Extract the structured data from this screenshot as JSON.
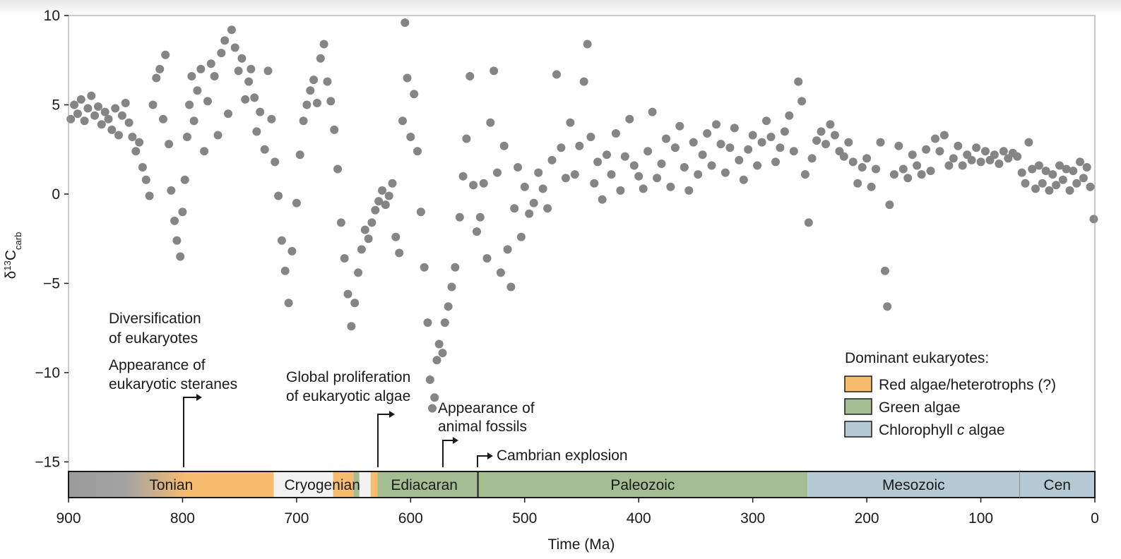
{
  "chart_data": {
    "type": "scatter",
    "title": "",
    "xlabel": "Time (Ma)",
    "ylabel_main": "δ",
    "ylabel_sup": "13",
    "ylabel_main2": "C",
    "ylabel_sub": "carb",
    "xlim": [
      900,
      0
    ],
    "ylim": [
      -17,
      10
    ],
    "x_ticks": [
      900,
      800,
      700,
      600,
      500,
      400,
      300,
      200,
      100,
      0
    ],
    "y_ticks": [
      10,
      5,
      0,
      -5,
      -10,
      -15
    ],
    "y_tick_labels": [
      "10",
      "5",
      "0",
      "−5",
      "−10",
      "−15"
    ],
    "grid": false,
    "marker_color": "#858585",
    "series": [
      {
        "points": [
          [
            898,
            4.2
          ],
          [
            895,
            5.0
          ],
          [
            892,
            4.5
          ],
          [
            889,
            5.3
          ],
          [
            886,
            4.1
          ],
          [
            883,
            4.8
          ],
          [
            880,
            5.5
          ],
          [
            877,
            4.4
          ],
          [
            874,
            4.9
          ],
          [
            871,
            3.9
          ],
          [
            868,
            4.6
          ],
          [
            865,
            4.2
          ],
          [
            862,
            3.6
          ],
          [
            859,
            4.8
          ],
          [
            856,
            3.3
          ],
          [
            853,
            4.4
          ],
          [
            850,
            5.1
          ],
          [
            847,
            4.0
          ],
          [
            844,
            3.2
          ],
          [
            841,
            2.4
          ],
          [
            838,
            2.9
          ],
          [
            835,
            1.5
          ],
          [
            832,
            0.8
          ],
          [
            829,
            -0.1
          ],
          [
            826,
            5.0
          ],
          [
            823,
            6.5
          ],
          [
            820,
            7.0
          ],
          [
            817,
            4.2
          ],
          [
            815,
            7.8
          ],
          [
            812,
            2.8
          ],
          [
            810,
            0.2
          ],
          [
            807,
            -1.5
          ],
          [
            805,
            -2.6
          ],
          [
            802,
            -3.5
          ],
          [
            800,
            -1.0
          ],
          [
            798,
            0.8
          ],
          [
            796,
            3.2
          ],
          [
            794,
            5.0
          ],
          [
            792,
            6.6
          ],
          [
            790,
            4.1
          ],
          [
            787,
            5.8
          ],
          [
            784,
            7.0
          ],
          [
            781,
            2.4
          ],
          [
            778,
            5.2
          ],
          [
            775,
            7.3
          ],
          [
            772,
            6.6
          ],
          [
            769,
            3.3
          ],
          [
            766,
            7.9
          ],
          [
            763,
            8.6
          ],
          [
            760,
            4.5
          ],
          [
            757,
            9.2
          ],
          [
            754,
            8.2
          ],
          [
            751,
            6.9
          ],
          [
            748,
            7.6
          ],
          [
            745,
            5.3
          ],
          [
            742,
            6.3
          ],
          [
            740,
            7.0
          ],
          [
            737,
            5.4
          ],
          [
            735,
            3.5
          ],
          [
            732,
            4.6
          ],
          [
            728,
            2.5
          ],
          [
            725,
            6.9
          ],
          [
            722,
            4.2
          ],
          [
            719,
            1.8
          ],
          [
            716,
            -0.1
          ],
          [
            713,
            -2.6
          ],
          [
            710,
            -4.3
          ],
          [
            707,
            -6.1
          ],
          [
            704,
            -3.2
          ],
          [
            700,
            -0.5
          ],
          [
            697,
            2.2
          ],
          [
            694,
            4.1
          ],
          [
            691,
            5.0
          ],
          [
            688,
            5.8
          ],
          [
            685,
            6.4
          ],
          [
            682,
            5.1
          ],
          [
            679,
            7.6
          ],
          [
            676,
            8.4
          ],
          [
            673,
            6.3
          ],
          [
            670,
            5.2
          ],
          [
            667,
            3.6
          ],
          [
            664,
            1.4
          ],
          [
            661,
            -1.6
          ],
          [
            658,
            -3.6
          ],
          [
            655,
            -5.6
          ],
          [
            652,
            -7.4
          ],
          [
            649,
            -6.1
          ],
          [
            646,
            -4.4
          ],
          [
            643,
            -3.1
          ],
          [
            640,
            -2.0
          ],
          [
            637,
            -2.5
          ],
          [
            634,
            -1.6
          ],
          [
            631,
            -0.9
          ],
          [
            628,
            -0.4
          ],
          [
            625,
            0.2
          ],
          [
            622,
            -0.6
          ],
          [
            619,
            -0.1
          ],
          [
            616,
            0.6
          ],
          [
            613,
            -2.4
          ],
          [
            610,
            -3.3
          ],
          [
            607,
            4.1
          ],
          [
            605,
            9.6
          ],
          [
            603,
            6.5
          ],
          [
            600,
            3.2
          ],
          [
            597,
            5.6
          ],
          [
            594,
            2.4
          ],
          [
            591,
            -1.0
          ],
          [
            588,
            -4.1
          ],
          [
            585,
            -7.2
          ],
          [
            583,
            -10.4
          ],
          [
            581,
            -12.0
          ],
          [
            579,
            -11.4
          ],
          [
            577,
            -9.3
          ],
          [
            575,
            -8.4
          ],
          [
            572,
            -8.9
          ],
          [
            570,
            -7.2
          ],
          [
            567,
            -6.3
          ],
          [
            564,
            -5.2
          ],
          [
            561,
            -4.1
          ],
          [
            557,
            -1.3
          ],
          [
            554,
            1.0
          ],
          [
            551,
            3.1
          ],
          [
            548,
            6.6
          ],
          [
            545,
            0.5
          ],
          [
            542,
            -2.1
          ],
          [
            539,
            -1.3
          ],
          [
            536,
            0.6
          ],
          [
            533,
            -3.6
          ],
          [
            530,
            4.0
          ],
          [
            527,
            6.9
          ],
          [
            524,
            1.2
          ],
          [
            521,
            -4.4
          ],
          [
            518,
            2.7
          ],
          [
            515,
            -3.1
          ],
          [
            512,
            -5.2
          ],
          [
            509,
            -0.8
          ],
          [
            506,
            1.5
          ],
          [
            503,
            -2.4
          ],
          [
            500,
            0.4
          ],
          [
            496,
            -1.1
          ],
          [
            492,
            -0.5
          ],
          [
            488,
            1.2
          ],
          [
            484,
            0.3
          ],
          [
            480,
            -0.8
          ],
          [
            476,
            1.9
          ],
          [
            472,
            6.7
          ],
          [
            468,
            2.6
          ],
          [
            464,
            0.9
          ],
          [
            460,
            4.0
          ],
          [
            456,
            1.1
          ],
          [
            452,
            2.7
          ],
          [
            448,
            6.3
          ],
          [
            445,
            8.4
          ],
          [
            442,
            3.2
          ],
          [
            439,
            0.6
          ],
          [
            436,
            1.8
          ],
          [
            432,
            -0.3
          ],
          [
            428,
            2.2
          ],
          [
            424,
            1.1
          ],
          [
            420,
            3.4
          ],
          [
            416,
            0.2
          ],
          [
            412,
            2.1
          ],
          [
            408,
            4.2
          ],
          [
            404,
            1.6
          ],
          [
            400,
            1.0
          ],
          [
            396,
            0.3
          ],
          [
            392,
            2.4
          ],
          [
            388,
            4.6
          ],
          [
            384,
            0.9
          ],
          [
            380,
            1.7
          ],
          [
            376,
            3.1
          ],
          [
            372,
            0.4
          ],
          [
            368,
            2.6
          ],
          [
            364,
            3.8
          ],
          [
            360,
            1.5
          ],
          [
            356,
            0.2
          ],
          [
            352,
            2.9
          ],
          [
            348,
            1.1
          ],
          [
            344,
            2.2
          ],
          [
            340,
            3.4
          ],
          [
            336,
            1.6
          ],
          [
            332,
            3.9
          ],
          [
            328,
            2.8
          ],
          [
            324,
            1.2
          ],
          [
            320,
            2.6
          ],
          [
            316,
            3.7
          ],
          [
            312,
            1.9
          ],
          [
            308,
            0.8
          ],
          [
            304,
            2.5
          ],
          [
            300,
            3.3
          ],
          [
            296,
            1.6
          ],
          [
            292,
            2.9
          ],
          [
            288,
            4.1
          ],
          [
            284,
            3.2
          ],
          [
            280,
            1.8
          ],
          [
            276,
            2.6
          ],
          [
            272,
            3.5
          ],
          [
            268,
            4.4
          ],
          [
            264,
            2.4
          ],
          [
            260,
            6.3
          ],
          [
            257,
            5.2
          ],
          [
            254,
            1.1
          ],
          [
            251,
            -1.6
          ],
          [
            248,
            2.0
          ],
          [
            244,
            3.0
          ],
          [
            240,
            3.5
          ],
          [
            236,
            2.8
          ],
          [
            232,
            3.9
          ],
          [
            228,
            3.3
          ],
          [
            224,
            2.4
          ],
          [
            220,
            2.1
          ],
          [
            216,
            2.9
          ],
          [
            212,
            1.8
          ],
          [
            208,
            0.6
          ],
          [
            204,
            1.5
          ],
          [
            200,
            2.0
          ],
          [
            196,
            0.4
          ],
          [
            192,
            1.4
          ],
          [
            188,
            2.9
          ],
          [
            184,
            -4.3
          ],
          [
            182,
            -6.3
          ],
          [
            180,
            -0.6
          ],
          [
            176,
            1.1
          ],
          [
            172,
            2.7
          ],
          [
            168,
            1.4
          ],
          [
            164,
            0.9
          ],
          [
            160,
            2.2
          ],
          [
            156,
            1.6
          ],
          [
            152,
            1.1
          ],
          [
            148,
            2.5
          ],
          [
            144,
            1.3
          ],
          [
            140,
            3.1
          ],
          [
            136,
            2.4
          ],
          [
            132,
            3.3
          ],
          [
            128,
            1.6
          ],
          [
            124,
            2.0
          ],
          [
            120,
            2.7
          ],
          [
            116,
            1.6
          ],
          [
            112,
            2.2
          ],
          [
            108,
            1.9
          ],
          [
            104,
            2.6
          ],
          [
            100,
            1.8
          ],
          [
            96,
            2.4
          ],
          [
            92,
            1.9
          ],
          [
            88,
            2.2
          ],
          [
            84,
            1.7
          ],
          [
            80,
            2.4
          ],
          [
            76,
            2.0
          ],
          [
            72,
            2.3
          ],
          [
            68,
            2.1
          ],
          [
            64,
            1.2
          ],
          [
            61,
            0.6
          ],
          [
            58,
            2.9
          ],
          [
            55,
            1.4
          ],
          [
            52,
            0.3
          ],
          [
            49,
            1.6
          ],
          [
            46,
            0.6
          ],
          [
            43,
            1.3
          ],
          [
            40,
            0.2
          ],
          [
            37,
            1.1
          ],
          [
            34,
            0.5
          ],
          [
            31,
            1.6
          ],
          [
            28,
            0.8
          ],
          [
            25,
            1.4
          ],
          [
            22,
            0.2
          ],
          [
            19,
            1.3
          ],
          [
            16,
            0.6
          ],
          [
            13,
            1.8
          ],
          [
            10,
            0.9
          ],
          [
            7,
            1.5
          ],
          [
            4,
            0.4
          ],
          [
            1,
            -1.4
          ]
        ]
      }
    ],
    "annotations": [
      {
        "text": "Diversification",
        "x": 800,
        "y": -8.0
      },
      {
        "text": "of eukaryotes",
        "x": 800,
        "y": -9.1
      },
      {
        "text": "Appearance of",
        "x": 800,
        "y": -10.6
      },
      {
        "text": "eukaryotic steranes",
        "x": 800,
        "y": -11.7
      },
      {
        "text": "Global proliferation",
        "x": 625,
        "y": -11.4
      },
      {
        "text": "of eukaryotic algae",
        "x": 625,
        "y": -12.5
      },
      {
        "text": "Appearance of",
        "x": 572,
        "y": -13.6
      },
      {
        "text": "animal fossils",
        "x": 572,
        "y": -14.7
      },
      {
        "text": "Cambrian explosion",
        "x": 541,
        "y": -16.0
      }
    ],
    "periods": [
      {
        "name": "Tonian",
        "start": 900,
        "end": 720,
        "color": "#f8bc6e",
        "fade": true
      },
      {
        "name": "Cryogenian",
        "start": 720,
        "end": 635,
        "color": "#f2f2f2"
      },
      {
        "name": "Ediacaran",
        "start": 635,
        "end": 541,
        "color": "#a5bd92"
      },
      {
        "name": "Paleozoic",
        "start": 541,
        "end": 252,
        "color": "#a5bd92"
      },
      {
        "name": "Mesozoic",
        "start": 252,
        "end": 66,
        "color": "#b6cad5"
      },
      {
        "name": "Cen",
        "start": 66,
        "end": 0,
        "color": "#b6cad5"
      }
    ],
    "legend": {
      "title": "Dominant eukaryotes:",
      "placement": "bottom-right",
      "items": [
        {
          "label": "Red algae/heterotrophs (?)",
          "color": "#f8bc6e"
        },
        {
          "label": "Green algae",
          "color": "#a5bd92"
        },
        {
          "label": "Chlorophyll",
          "label_italic": "c",
          "label_end": "algae",
          "color": "#b6cad5"
        }
      ]
    }
  }
}
